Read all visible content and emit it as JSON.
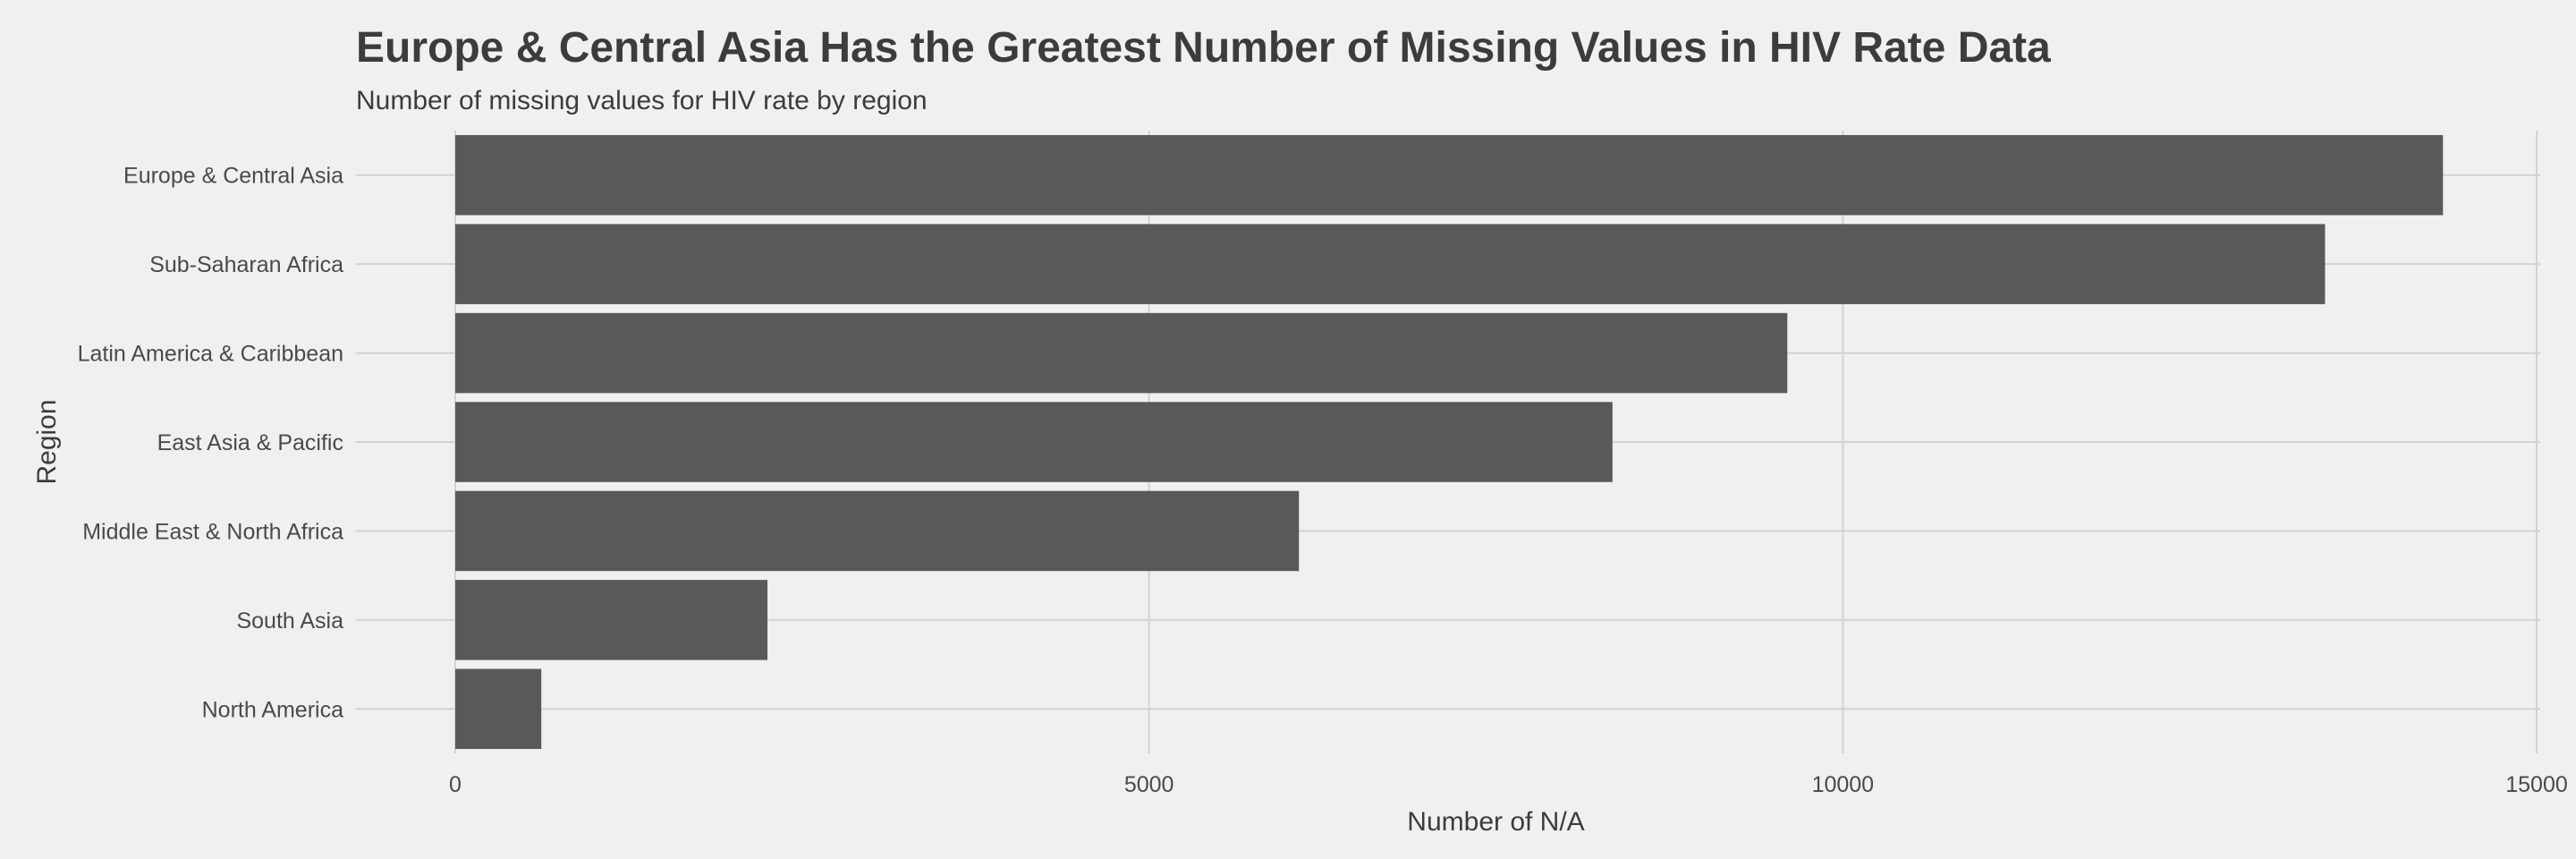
{
  "chart_data": {
    "type": "bar",
    "orientation": "horizontal",
    "title": "Europe & Central Asia Has the Greatest Number of Missing Values in HIV Rate Data",
    "subtitle": "Number of missing values for HIV rate by region",
    "xlabel": "Number of N/A",
    "ylabel": "Region",
    "categories": [
      "Europe & Central Asia",
      "Sub-Saharan Africa",
      "Latin America & Caribbean",
      "East Asia & Pacific",
      "Middle East & North Africa",
      "South Asia",
      "North America"
    ],
    "values": [
      14325,
      13475,
      9600,
      8340,
      6080,
      2250,
      620
    ],
    "xlim": [
      0,
      15000
    ],
    "xticks": [
      0,
      5000,
      10000,
      15000
    ],
    "xtick_labels": [
      "0",
      "5000",
      "10000",
      "15000"
    ],
    "grid": true,
    "bar_color": "#595959",
    "grid_color": "#d2d2d2",
    "background_color": "#f0f0f0"
  }
}
